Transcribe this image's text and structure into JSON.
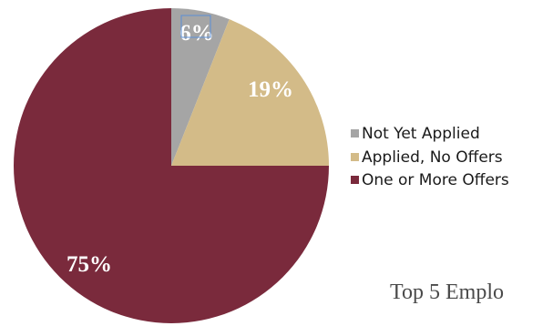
{
  "chart_data": {
    "type": "pie",
    "slices": [
      {
        "name": "Not Yet Applied",
        "value": 6,
        "label": "6%",
        "color": "#a5a5a5"
      },
      {
        "name": "Applied, No Offers",
        "value": 19,
        "label": "19%",
        "color": "#d3bb88"
      },
      {
        "name": "One or More Offers",
        "value": 75,
        "label": "75%",
        "color": "#7a2a3c"
      }
    ],
    "legend_placement": "right",
    "start_angle": "top",
    "direction": "clockwise"
  },
  "caption": "Top 5 Emplo"
}
